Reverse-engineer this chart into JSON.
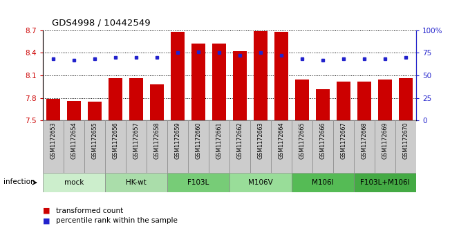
{
  "title": "GDS4998 / 10442549",
  "samples": [
    "GSM1172653",
    "GSM1172654",
    "GSM1172655",
    "GSM1172656",
    "GSM1172657",
    "GSM1172658",
    "GSM1172659",
    "GSM1172660",
    "GSM1172661",
    "GSM1172662",
    "GSM1172663",
    "GSM1172664",
    "GSM1172665",
    "GSM1172666",
    "GSM1172667",
    "GSM1172668",
    "GSM1172669",
    "GSM1172670"
  ],
  "bar_values": [
    7.79,
    7.76,
    7.75,
    8.06,
    8.06,
    7.98,
    8.68,
    8.52,
    8.52,
    8.42,
    8.69,
    8.68,
    8.04,
    7.92,
    8.02,
    8.02,
    8.04,
    8.06
  ],
  "dot_values": [
    68,
    67,
    68,
    70,
    70,
    70,
    75,
    76,
    75,
    72,
    75,
    72,
    68,
    67,
    68,
    68,
    68,
    70
  ],
  "bar_color": "#cc0000",
  "dot_color": "#2222cc",
  "ylim_left": [
    7.5,
    8.7
  ],
  "ylim_right": [
    0,
    100
  ],
  "yticks_left": [
    7.5,
    7.8,
    8.1,
    8.4,
    8.7
  ],
  "yticks_right": [
    0,
    25,
    50,
    75,
    100
  ],
  "ytick_labels_left": [
    "7.5",
    "7.8",
    "8.1",
    "8.4",
    "8.7"
  ],
  "ytick_labels_right": [
    "0",
    "25",
    "50",
    "75",
    "100%"
  ],
  "groups": [
    {
      "label": "mock",
      "start": 0,
      "end": 3,
      "color": "#cceecc"
    },
    {
      "label": "HK-wt",
      "start": 3,
      "end": 6,
      "color": "#aaddaa"
    },
    {
      "label": "F103L",
      "start": 6,
      "end": 9,
      "color": "#77cc77"
    },
    {
      "label": "M106V",
      "start": 9,
      "end": 12,
      "color": "#99dd99"
    },
    {
      "label": "M106I",
      "start": 12,
      "end": 15,
      "color": "#55bb55"
    },
    {
      "label": "F103L+M106I",
      "start": 15,
      "end": 18,
      "color": "#44aa44"
    }
  ],
  "sample_box_color": "#cccccc",
  "sample_box_edge": "#888888",
  "infection_label": "infection",
  "legend_bar_label": "transformed count",
  "legend_dot_label": "percentile rank within the sample",
  "dotted_line_color": "black",
  "axis_color_left": "#cc0000",
  "axis_color_right": "#2222cc",
  "bar_width": 0.65,
  "background_color": "#ffffff"
}
